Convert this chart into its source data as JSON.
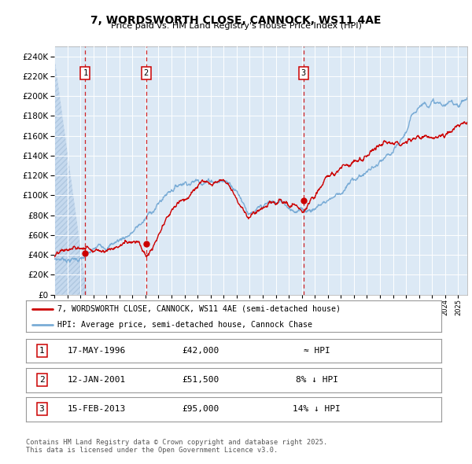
{
  "title": "7, WORDSWORTH CLOSE, CANNOCK, WS11 4AE",
  "subtitle": "Price paid vs. HM Land Registry's House Price Index (HPI)",
  "plot_bg_color": "#dce9f5",
  "grid_color": "#ffffff",
  "red_line_color": "#cc0000",
  "blue_line_color": "#7aacd6",
  "ylim": [
    0,
    250000
  ],
  "sale_markers": [
    {
      "label": "1",
      "date_num": 1996.38,
      "price": 42000
    },
    {
      "label": "2",
      "date_num": 2001.04,
      "price": 51500
    },
    {
      "label": "3",
      "date_num": 2013.12,
      "price": 95000
    }
  ],
  "legend_entries": [
    "7, WORDSWORTH CLOSE, CANNOCK, WS11 4AE (semi-detached house)",
    "HPI: Average price, semi-detached house, Cannock Chase"
  ],
  "table_rows": [
    {
      "num": "1",
      "date": "17-MAY-1996",
      "price": "£42,000",
      "note": "≈ HPI"
    },
    {
      "num": "2",
      "date": "12-JAN-2001",
      "price": "£51,500",
      "note": "8% ↓ HPI"
    },
    {
      "num": "3",
      "date": "15-FEB-2013",
      "price": "£95,000",
      "note": "14% ↓ HPI"
    }
  ],
  "footer": "Contains HM Land Registry data © Crown copyright and database right 2025.\nThis data is licensed under the Open Government Licence v3.0.",
  "xmin": 1994.0,
  "xmax": 2025.7
}
